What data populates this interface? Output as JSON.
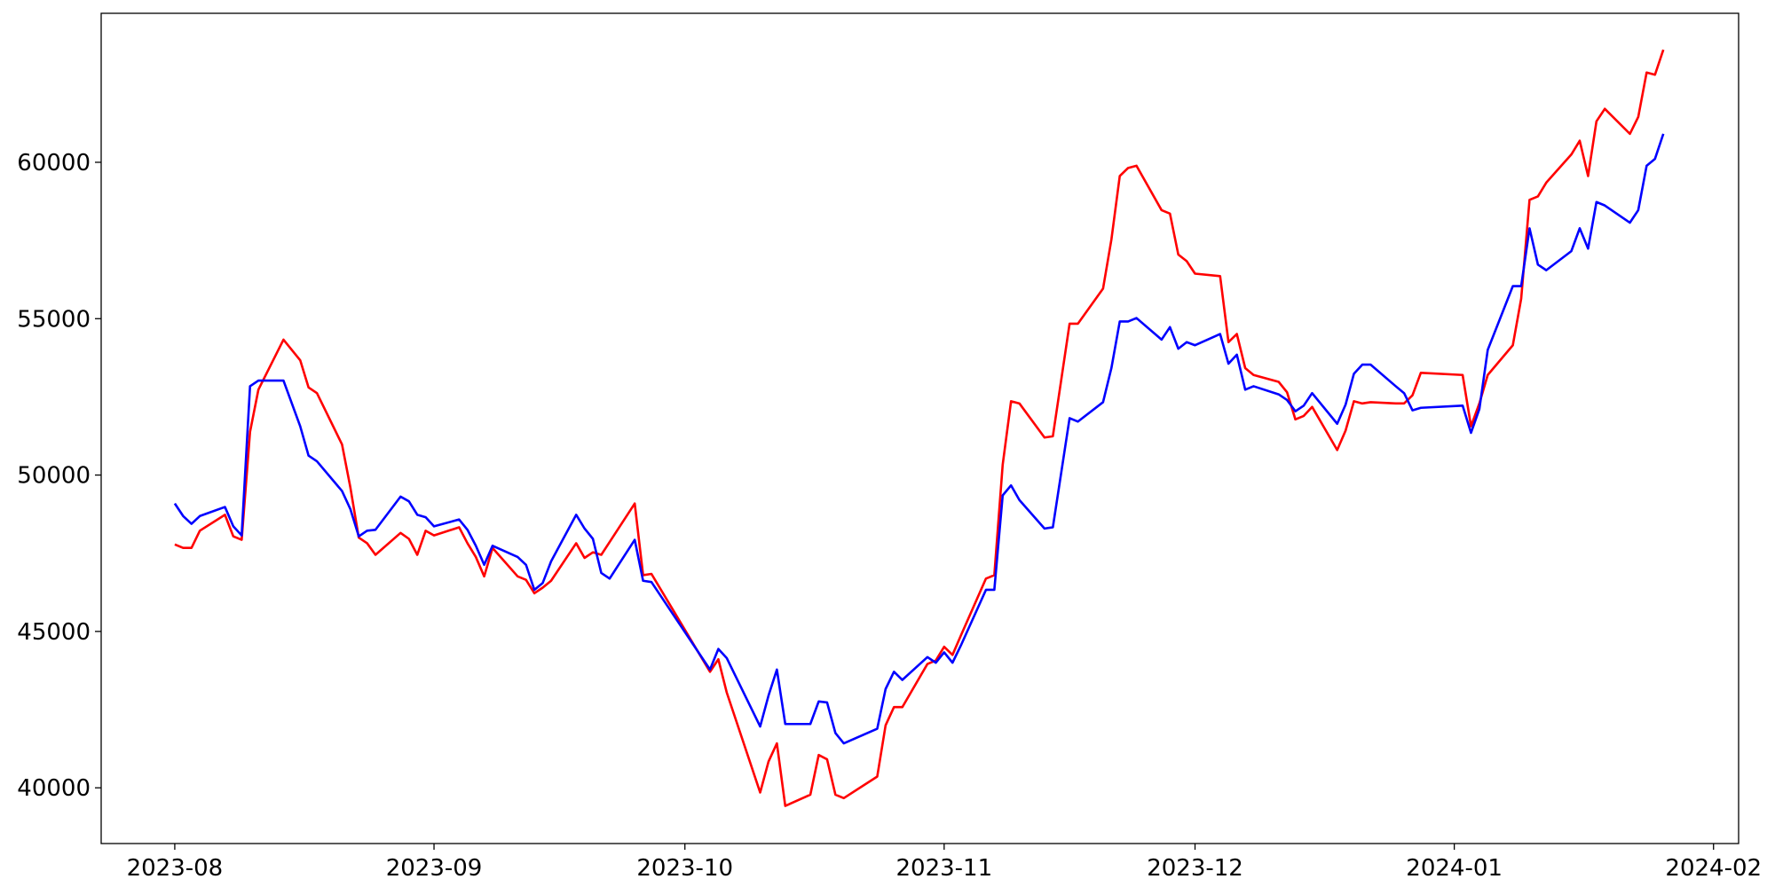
{
  "chart_data": {
    "type": "line",
    "x": [
      0,
      1,
      2,
      3,
      6,
      7,
      8,
      9,
      10,
      13,
      15,
      16,
      17,
      20,
      21,
      22,
      23,
      24,
      27,
      28,
      29,
      30,
      31,
      34,
      35,
      36,
      37,
      38,
      41,
      42,
      43,
      44,
      45,
      48,
      49,
      50,
      51,
      52,
      55,
      56,
      57,
      64,
      65,
      66,
      70,
      71,
      72,
      73,
      76,
      77,
      78,
      79,
      80,
      84,
      85,
      86,
      87,
      90,
      91,
      92,
      93,
      94,
      97,
      98,
      99,
      100,
      101,
      104,
      105,
      107,
      108,
      111,
      112,
      113,
      114,
      115,
      118,
      119,
      120,
      121,
      122,
      125,
      126,
      127,
      128,
      129,
      132,
      133,
      134,
      135,
      136,
      139,
      140,
      141,
      142,
      143,
      146,
      147,
      148,
      149,
      154,
      155,
      156,
      157,
      160,
      161,
      162,
      163,
      164,
      167,
      168,
      169,
      170,
      171,
      174,
      175,
      176,
      177,
      178
    ],
    "series": [
      {
        "color": "#ff0000",
        "values": [
          47780,
          47670,
          47670,
          48220,
          48730,
          48040,
          47930,
          51380,
          52730,
          54330,
          53670,
          52800,
          52620,
          50980,
          49600,
          48000,
          47820,
          47450,
          48150,
          47960,
          47450,
          48220,
          48070,
          48330,
          47820,
          47380,
          46760,
          47670,
          46760,
          46650,
          46220,
          46400,
          46620,
          47820,
          47350,
          47530,
          47450,
          47860,
          49090,
          46800,
          46840,
          43710,
          44110,
          43050,
          39850,
          40840,
          41420,
          39420,
          39780,
          41050,
          40910,
          39780,
          39670,
          40360,
          42000,
          42580,
          42580,
          43960,
          44070,
          44510,
          44250,
          44870,
          46690,
          46800,
          50330,
          52360,
          52290,
          51200,
          51240,
          54840,
          54840,
          55960,
          57530,
          59560,
          59820,
          59890,
          58470,
          58360,
          57050,
          56840,
          56440,
          56360,
          54250,
          54510,
          53420,
          53200,
          52980,
          52650,
          51780,
          51890,
          52180,
          50800,
          51420,
          52360,
          52290,
          52330,
          52290,
          52290,
          52550,
          53270,
          53200,
          51560,
          52290,
          53200,
          54150,
          55640,
          58800,
          58910,
          59350,
          60250,
          60690,
          59560,
          61310,
          61710,
          60910,
          61450,
          62870,
          62800,
          63600
        ]
      },
      {
        "color": "#0000ff",
        "values": [
          49090,
          48690,
          48440,
          48690,
          48980,
          48360,
          48070,
          52840,
          53020,
          53020,
          51560,
          50620,
          50440,
          49490,
          48910,
          48040,
          48220,
          48250,
          49310,
          49160,
          48730,
          48650,
          48360,
          48580,
          48250,
          47740,
          47130,
          47740,
          47380,
          47130,
          46330,
          46550,
          47240,
          48730,
          48290,
          47960,
          46870,
          46690,
          47930,
          46620,
          46580,
          43780,
          44440,
          44150,
          41960,
          42950,
          43780,
          42040,
          42040,
          42760,
          42730,
          41750,
          41420,
          41890,
          43160,
          43710,
          43450,
          44180,
          44000,
          44330,
          44000,
          44550,
          46330,
          46330,
          49350,
          49670,
          49200,
          48290,
          48330,
          51820,
          51710,
          52330,
          53420,
          54910,
          54910,
          55020,
          54330,
          54730,
          54040,
          54250,
          54150,
          54510,
          53560,
          53850,
          52730,
          52840,
          52580,
          52400,
          52040,
          52220,
          52620,
          51640,
          52250,
          53240,
          53530,
          53530,
          52840,
          52620,
          52070,
          52150,
          52220,
          51350,
          52110,
          54000,
          56040,
          56040,
          57890,
          56730,
          56550,
          57160,
          57890,
          57240,
          58730,
          58620,
          58070,
          58470,
          59890,
          60110,
          60910
        ]
      }
    ],
    "xlim": [
      -8.8,
      187.0
    ],
    "xticks": [
      {
        "value": 0,
        "label": "2023-08"
      },
      {
        "value": 31,
        "label": "2023-09"
      },
      {
        "value": 61,
        "label": "2023-10"
      },
      {
        "value": 92,
        "label": "2023-11"
      },
      {
        "value": 122,
        "label": "2023-12"
      },
      {
        "value": 153,
        "label": "2024-01"
      },
      {
        "value": 184,
        "label": "2024-02"
      }
    ],
    "ylim": [
      38218,
      64764
    ],
    "yticks": [
      40000,
      45000,
      50000,
      55000,
      60000
    ],
    "grid": false
  }
}
